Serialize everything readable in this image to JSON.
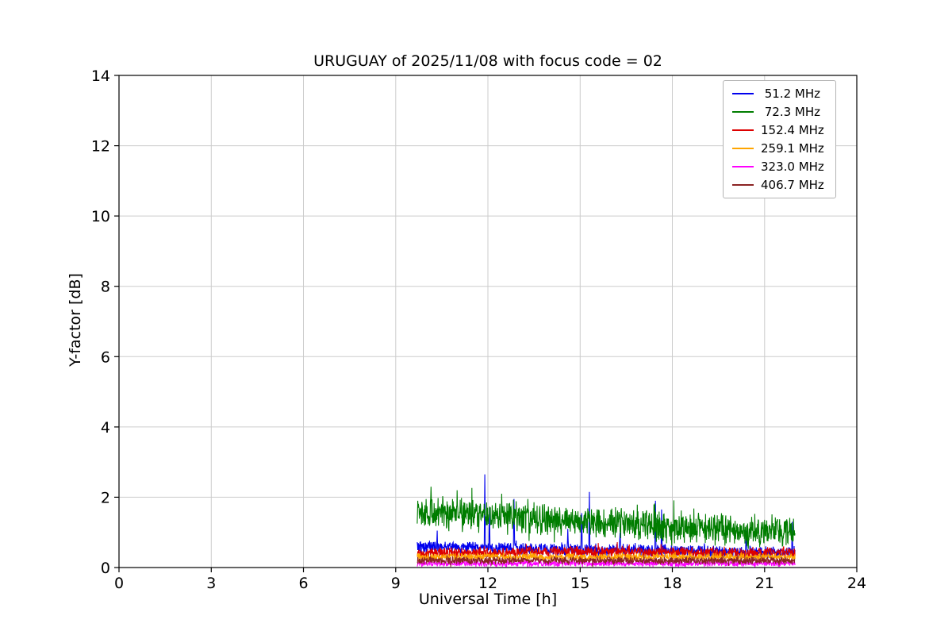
{
  "chart_data": {
    "type": "line",
    "title": "URUGUAY of 2025/11/08 with focus code = 02",
    "xlabel": "Universal Time [h]",
    "ylabel": "Y-factor [dB]",
    "xlim": [
      0,
      24
    ],
    "ylim": [
      0,
      14
    ],
    "xticks": [
      0,
      3,
      6,
      9,
      12,
      15,
      18,
      21,
      24
    ],
    "yticks": [
      0,
      2,
      4,
      6,
      8,
      10,
      12,
      14
    ],
    "grid": true,
    "grid_color": "#cccccc",
    "legend_position": "upper right",
    "data_x_range": [
      9.7,
      22.0
    ],
    "series": [
      {
        "name": " 51.2 MHz",
        "color": "#0000ee",
        "baseline": [
          [
            9.7,
            0.6
          ],
          [
            12.0,
            0.55
          ],
          [
            16.0,
            0.5
          ],
          [
            22.0,
            0.42
          ]
        ],
        "noise": 0.13,
        "spikes": [
          [
            10.35,
            1.05
          ],
          [
            11.9,
            2.65
          ],
          [
            12.05,
            1.7
          ],
          [
            12.85,
            1.95
          ],
          [
            14.6,
            1.1
          ],
          [
            15.05,
            1.55
          ],
          [
            15.3,
            2.15
          ],
          [
            16.3,
            1.0
          ],
          [
            17.45,
            1.9
          ],
          [
            17.65,
            1.65
          ],
          [
            20.4,
            1.05
          ],
          [
            21.9,
            1.3
          ]
        ]
      },
      {
        "name": " 72.3 MHz",
        "color": "#007d00",
        "baseline": [
          [
            9.7,
            1.5
          ],
          [
            10.5,
            1.55
          ],
          [
            13.0,
            1.4
          ],
          [
            16.0,
            1.25
          ],
          [
            19.0,
            1.1
          ],
          [
            22.0,
            1.0
          ]
        ],
        "noise": 0.34,
        "spikes": [
          [
            10.15,
            2.3
          ],
          [
            11.0,
            2.2
          ],
          [
            12.45,
            2.1
          ],
          [
            13.3,
            1.95
          ]
        ]
      },
      {
        "name": "152.4 MHz",
        "color": "#dd0000",
        "baseline": [
          [
            9.7,
            0.4
          ],
          [
            14.0,
            0.45
          ],
          [
            22.0,
            0.42
          ]
        ],
        "noise": 0.12,
        "spikes": []
      },
      {
        "name": "259.1 MHz",
        "color": "#ffa500",
        "baseline": [
          [
            9.7,
            0.3
          ],
          [
            22.0,
            0.3
          ]
        ],
        "noise": 0.08,
        "spikes": []
      },
      {
        "name": "323.0 MHz",
        "color": "#ff00ff",
        "baseline": [
          [
            9.7,
            0.12
          ],
          [
            22.0,
            0.12
          ]
        ],
        "noise": 0.07,
        "spikes": []
      },
      {
        "name": "406.7 MHz",
        "color": "#8b2323",
        "baseline": [
          [
            9.7,
            0.2
          ],
          [
            22.0,
            0.2
          ]
        ],
        "noise": 0.08,
        "spikes": []
      }
    ]
  }
}
